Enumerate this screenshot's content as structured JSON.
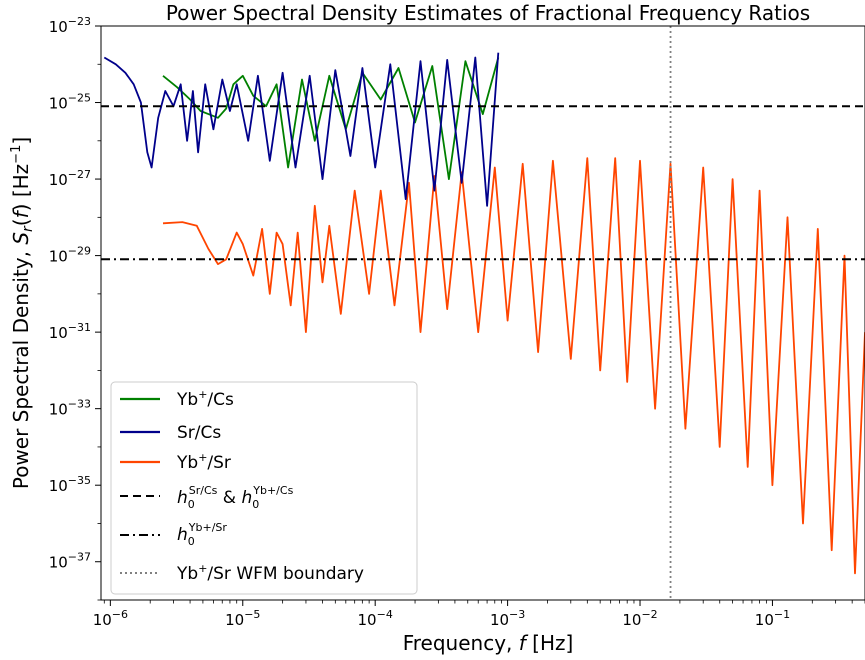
{
  "chart_data": {
    "type": "line",
    "title": "Power Spectral Density Estimates of Fractional Frequency Ratios",
    "xlabel": "Frequency, f [Hz]",
    "ylabel": "Power Spectral Density, S_r(f) [Hz^-1]",
    "xscale": "log",
    "yscale": "log",
    "xlim": [
      8.5e-07,
      0.5
    ],
    "ylim": [
      1e-38,
      1e-23
    ],
    "x_ticks": [
      {
        "value": 1e-06,
        "base": "10",
        "exp": "−6"
      },
      {
        "value": 1e-05,
        "base": "10",
        "exp": "−5"
      },
      {
        "value": 0.0001,
        "base": "10",
        "exp": "−4"
      },
      {
        "value": 0.001,
        "base": "10",
        "exp": "−3"
      },
      {
        "value": 0.01,
        "base": "10",
        "exp": "−2"
      },
      {
        "value": 0.1,
        "base": "10",
        "exp": "−1"
      }
    ],
    "y_ticks": [
      {
        "value": 1e-23,
        "base": "10",
        "exp": "−23"
      },
      {
        "value": 1e-25,
        "base": "10",
        "exp": "−25"
      },
      {
        "value": 1e-27,
        "base": "10",
        "exp": "−27"
      },
      {
        "value": 1e-29,
        "base": "10",
        "exp": "−29"
      },
      {
        "value": 1e-31,
        "base": "10",
        "exp": "−31"
      },
      {
        "value": 1e-33,
        "base": "10",
        "exp": "−33"
      },
      {
        "value": 1e-35,
        "base": "10",
        "exp": "−35"
      },
      {
        "value": 1e-37,
        "base": "10",
        "exp": "−37"
      }
    ],
    "series": [
      {
        "name": "Yb⁺/Cs",
        "color": "#008000",
        "x": [
          2.5e-06,
          3.2e-06,
          4e-06,
          4.8e-06,
          5.5e-06,
          6.5e-06,
          7.5e-06,
          8.5e-06,
          1e-05,
          1.2e-05,
          1.5e-05,
          1.8e-05,
          2.2e-05,
          2.8e-05,
          3.5e-05,
          4.5e-05,
          6e-05,
          8e-05,
          0.00011,
          0.00015,
          0.0002,
          0.00027,
          0.00036,
          0.00048,
          0.00065,
          0.00085
        ],
        "y": [
          5e-25,
          2.5e-25,
          1.2e-25,
          6e-26,
          5e-26,
          4e-26,
          7e-26,
          3e-25,
          5e-25,
          1.5e-25,
          8e-26,
          3e-25,
          2e-27,
          4e-25,
          1e-26,
          5e-25,
          2e-26,
          6e-25,
          1.2e-25,
          8e-25,
          3e-26,
          9e-25,
          1e-27,
          1.2e-24,
          5e-26,
          1.5e-24
        ]
      },
      {
        "name": "Sr/Cs",
        "color": "#00008b",
        "x": [
          9e-07,
          1.1e-06,
          1.3e-06,
          1.5e-06,
          1.7e-06,
          1.9e-06,
          2.05e-06,
          2.3e-06,
          2.6e-06,
          3e-06,
          3.4e-06,
          3.8e-06,
          4.2e-06,
          4.6e-06,
          5.2e-06,
          6e-06,
          7e-06,
          8e-06,
          9e-06,
          1.1e-05,
          1.3e-05,
          1.6e-05,
          2e-05,
          2.5e-05,
          3.2e-05,
          4e-05,
          5e-05,
          6.5e-05,
          8e-05,
          0.0001,
          0.00013,
          0.00017,
          0.00022,
          0.00028,
          0.00035,
          0.00045,
          0.00057,
          0.0007,
          0.00085
        ],
        "y": [
          1.5e-24,
          1e-24,
          6e-25,
          3e-25,
          1e-25,
          5e-27,
          2e-27,
          4e-26,
          2e-25,
          8e-26,
          3e-25,
          1e-26,
          2e-25,
          5e-27,
          3e-25,
          2e-26,
          4e-25,
          6e-26,
          3e-25,
          1e-26,
          5e-25,
          3e-27,
          6e-25,
          2e-27,
          5e-25,
          1e-27,
          7e-25,
          4e-27,
          8e-25,
          2e-27,
          1e-24,
          3e-28,
          1.2e-24,
          5e-28,
          1.3e-24,
          8e-28,
          1.5e-24,
          2e-28,
          2e-24
        ]
      },
      {
        "name": "Yb⁺/Sr",
        "color": "#ff4500",
        "x": [
          2.5e-06,
          3.5e-06,
          4.5e-06,
          5.5e-06,
          6.5e-06,
          7.5e-06,
          9e-06,
          1e-05,
          1.2e-05,
          1.4e-05,
          1.6e-05,
          1.8e-05,
          2e-05,
          2.3e-05,
          2.6e-05,
          3e-05,
          3.5e-05,
          4e-05,
          4.5e-05,
          5.5e-05,
          7e-05,
          9e-05,
          0.00011,
          0.00014,
          0.00018,
          0.00022,
          0.00028,
          0.00035,
          0.00045,
          0.0006,
          0.0008,
          0.001,
          0.0013,
          0.0017,
          0.0022,
          0.003,
          0.004,
          0.005,
          0.0065,
          0.008,
          0.01,
          0.013,
          0.017,
          0.022,
          0.03,
          0.04,
          0.05,
          0.065,
          0.08,
          0.1,
          0.13,
          0.17,
          0.22,
          0.28,
          0.35,
          0.42,
          0.5
        ],
        "y": [
          7e-29,
          7.5e-29,
          6e-29,
          1.5e-29,
          6e-30,
          8e-30,
          4e-29,
          2e-29,
          3e-30,
          5e-29,
          1e-30,
          4e-29,
          2e-29,
          5e-31,
          4e-29,
          1e-31,
          2e-28,
          2e-30,
          6e-29,
          3e-31,
          5e-28,
          1e-30,
          5e-28,
          5e-31,
          8e-28,
          1e-31,
          1.2e-27,
          4e-31,
          1.5e-27,
          1e-31,
          2e-27,
          2e-31,
          2.5e-27,
          3e-32,
          3e-27,
          2e-32,
          3.5e-27,
          1e-32,
          3.5e-27,
          5e-33,
          3e-27,
          1e-33,
          2.5e-27,
          3e-34,
          2e-27,
          1e-34,
          1e-27,
          3e-35,
          5e-28,
          1e-35,
          1e-28,
          1e-36,
          5e-29,
          2e-37,
          1e-29,
          5e-38,
          1e-31
        ]
      }
    ],
    "hlines": [
      {
        "name": "h₀^Sr/Cs & h₀^Yb⁺/Cs",
        "y": 8e-26,
        "style": "dashed",
        "color": "#000000"
      },
      {
        "name": "h₀^Yb⁺/Sr",
        "y": 8e-30,
        "style": "dashdot",
        "color": "#000000"
      }
    ],
    "vlines": [
      {
        "name": "Yb⁺/Sr WFM boundary",
        "x": 0.017,
        "style": "dotted",
        "color": "#808080"
      }
    ],
    "legend": {
      "placement": "lower-left",
      "entries": [
        {
          "label": "Yb⁺/Cs",
          "color": "#008000",
          "style": "solid"
        },
        {
          "label": "Sr/Cs",
          "color": "#00008b",
          "style": "solid"
        },
        {
          "label": "Yb⁺/Sr",
          "color": "#ff4500",
          "style": "solid"
        },
        {
          "label": "h₀^Sr/Cs & h₀^Yb⁺/Cs",
          "color": "#000000",
          "style": "dashed"
        },
        {
          "label": "h₀^Yb⁺/Sr",
          "color": "#000000",
          "style": "dashdot"
        },
        {
          "label": "Yb⁺/Sr WFM boundary",
          "color": "#808080",
          "style": "dotted"
        }
      ]
    },
    "grid": false
  }
}
